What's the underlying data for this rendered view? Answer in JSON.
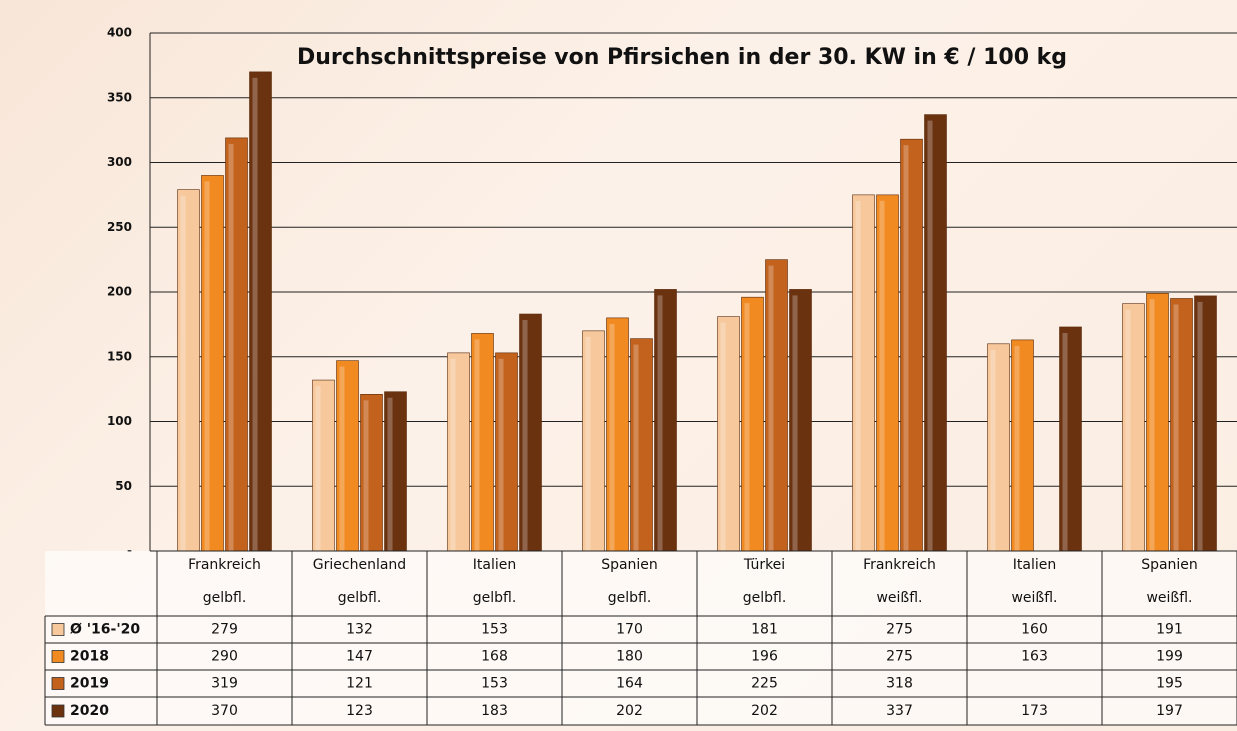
{
  "chart_data": {
    "type": "bar",
    "title": "Durchschnittspreise von Pfirsichen in der 30. KW in € / 100 kg",
    "categories": [
      [
        "Frankreich",
        "gelbfl."
      ],
      [
        "Griechenland",
        "gelbfl."
      ],
      [
        "Italien",
        "gelbfl."
      ],
      [
        "Spanien",
        "gelbfl."
      ],
      [
        "Türkei",
        "gelbfl."
      ],
      [
        "Frankreich",
        "weißfl."
      ],
      [
        "Italien",
        "weißfl."
      ],
      [
        "Spanien",
        "weißfl."
      ]
    ],
    "series": [
      {
        "name": "Ø '16-'20",
        "color": "#f6c89c",
        "values": [
          279,
          132,
          153,
          170,
          181,
          275,
          160,
          191
        ]
      },
      {
        "name": "2018",
        "color": "#f28a22",
        "values": [
          290,
          147,
          168,
          180,
          196,
          275,
          163,
          199
        ]
      },
      {
        "name": "2019",
        "color": "#c3621c",
        "values": [
          319,
          121,
          153,
          164,
          225,
          318,
          null,
          195
        ]
      },
      {
        "name": "2020",
        "color": "#6b3210",
        "values": [
          370,
          123,
          183,
          202,
          202,
          337,
          173,
          197
        ]
      }
    ],
    "ylim": [
      0,
      400
    ],
    "yticks": [
      {
        "value": 0,
        "label": "-"
      },
      50,
      100,
      150,
      200,
      250,
      300,
      350,
      400
    ],
    "grid": true
  }
}
